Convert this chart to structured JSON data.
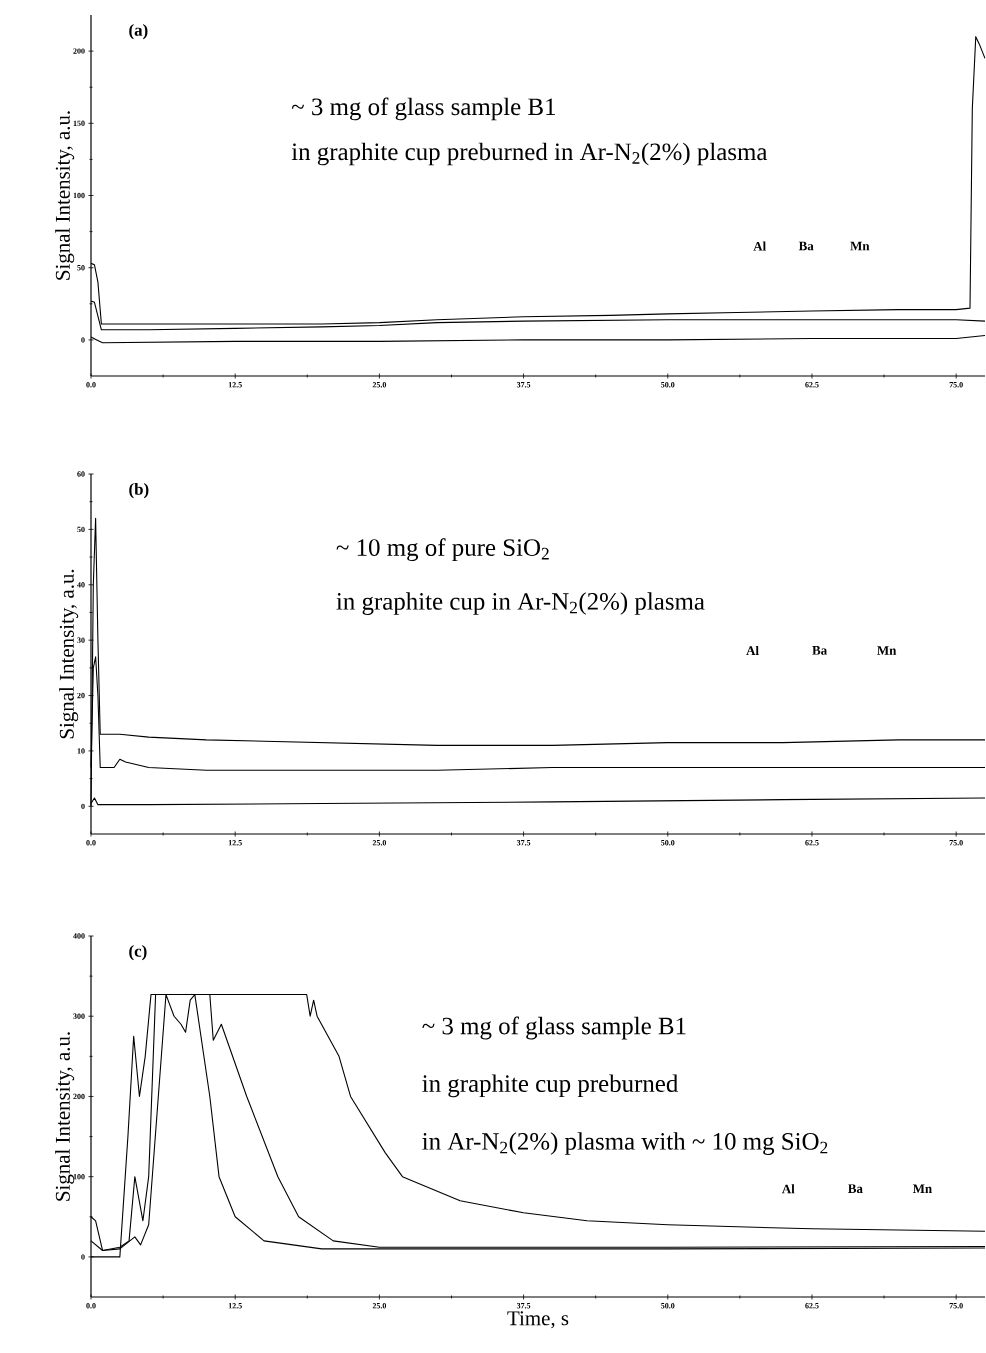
{
  "chart_data": [
    {
      "type": "line",
      "title": "(a)",
      "ylabel": "Signal Intensity, a.u.",
      "annotations": [
        "~ 3 mg of glass sample B1",
        "in graphite cup preburned in Ar-N$_{2}$(2%) plasma",
        "Al",
        "Ba",
        "Mn"
      ],
      "xlim": [
        0,
        77.5
      ],
      "ylim": [
        -25,
        225
      ],
      "xticks": [
        {
          "value": 0,
          "label": "0.0"
        },
        {
          "value": 12.5,
          "label": "12.5"
        },
        {
          "value": 25,
          "label": "25.0"
        },
        {
          "value": 37.5,
          "label": "37.5"
        },
        {
          "value": 50,
          "label": "50.0"
        },
        {
          "value": 62.5,
          "label": "62.5"
        },
        {
          "value": 75,
          "label": "75.0"
        }
      ],
      "yticks": [
        0,
        50,
        100,
        150,
        200
      ],
      "series": [
        {
          "color": "#000000",
          "x": [
            0,
            0.3,
            0.6,
            0.9,
            5,
            12.5,
            20,
            25,
            30,
            37.5,
            45,
            50,
            56,
            62.5,
            70,
            75,
            76.2,
            76.4,
            76.7,
            77,
            77.5
          ],
          "values": [
            53,
            52,
            40,
            11,
            11,
            11,
            11,
            12,
            14,
            16,
            17,
            18,
            19,
            20,
            21,
            21,
            22,
            160,
            210,
            205,
            195
          ]
        },
        {
          "color": "#000000",
          "x": [
            0,
            0.3,
            0.9,
            5,
            12.5,
            20,
            25,
            30,
            37.5,
            50,
            62.5,
            75,
            77.5
          ],
          "values": [
            27,
            26,
            7,
            7,
            8,
            9,
            10,
            12,
            13,
            14,
            14,
            14,
            13
          ]
        },
        {
          "color": "#000000",
          "x": [
            0,
            0.5,
            1,
            12.5,
            25,
            37.5,
            50,
            62.5,
            75,
            77.5
          ],
          "values": [
            2,
            0,
            -2,
            -1,
            -1,
            0,
            0,
            1,
            1,
            3
          ]
        }
      ]
    },
    {
      "type": "line",
      "title": "(b)",
      "ylabel": "Signal Intensity, a.u.",
      "annotations": [
        "~ 10 mg of pure SiO$_{2}$",
        "in graphite cup in Ar-N$_{2}$(2%) plasma",
        "Al",
        "Ba",
        "Mn"
      ],
      "xlim": [
        0,
        77.5
      ],
      "ylim": [
        -5,
        60
      ],
      "xticks": [
        {
          "value": 0,
          "label": "0.0"
        },
        {
          "value": 12.5,
          "label": "12.5"
        },
        {
          "value": 25,
          "label": "25.0"
        },
        {
          "value": 37.5,
          "label": "37.5"
        },
        {
          "value": 50,
          "label": "50.0"
        },
        {
          "value": 62.5,
          "label": "62.5"
        },
        {
          "value": 75,
          "label": "75.0"
        }
      ],
      "yticks": [
        0,
        10,
        20,
        30,
        40,
        50,
        60
      ],
      "series": [
        {
          "color": "#000000",
          "x": [
            0,
            0.2,
            0.4,
            0.6,
            0.8,
            2.5,
            5,
            10,
            20,
            30,
            40,
            50,
            60,
            70,
            77.5
          ],
          "values": [
            0,
            40,
            52,
            30,
            13,
            13,
            12.5,
            12,
            11.5,
            11,
            11,
            11.5,
            11.5,
            12,
            12
          ]
        },
        {
          "color": "#000000",
          "x": [
            0,
            0.2,
            0.4,
            0.6,
            0.8,
            2,
            2.5,
            3,
            5,
            10,
            20,
            30,
            40,
            50,
            60,
            70,
            77.5
          ],
          "values": [
            7,
            25,
            27,
            20,
            7,
            7,
            8.5,
            8,
            7,
            6.5,
            6.5,
            6.5,
            7,
            7,
            7,
            7,
            7
          ]
        },
        {
          "color": "#000000",
          "x": [
            0,
            0.3,
            0.6,
            5,
            20,
            40,
            60,
            77.5
          ],
          "values": [
            0.5,
            1.5,
            0.3,
            0.3,
            0.5,
            0.8,
            1.2,
            1.5
          ]
        }
      ]
    },
    {
      "type": "line",
      "title": "(c)",
      "xlabel": "Time, s",
      "ylabel": "Signal Intensity, a.u.",
      "annotations": [
        "~ 3 mg of glass sample B1",
        "in graphite cup preburned",
        "in Ar-N$_{2}$(2%) plasma with ~ 10 mg SiO$_{2}$",
        "Al",
        "Ba",
        "Mn"
      ],
      "xlim": [
        0,
        77.5
      ],
      "ylim": [
        -50,
        400
      ],
      "xticks": [
        {
          "value": 0,
          "label": "0.0"
        },
        {
          "value": 12.5,
          "label": "12.5"
        },
        {
          "value": 25,
          "label": "25.0"
        },
        {
          "value": 37.5,
          "label": "37.5"
        },
        {
          "value": 50,
          "label": "50.0"
        },
        {
          "value": 62.5,
          "label": "62.5"
        },
        {
          "value": 75,
          "label": "75.0"
        }
      ],
      "yticks": [
        0,
        100,
        200,
        300,
        400
      ],
      "series": [
        {
          "color": "#000000",
          "x": [
            0,
            1,
            2.5,
            3.8,
            4.3,
            5,
            6.5,
            7.2,
            7.8,
            8.2,
            8.6,
            9,
            10.3,
            11.1,
            12.5,
            15,
            20,
            30,
            50,
            77.5
          ],
          "values": [
            20,
            8,
            10,
            25,
            15,
            40,
            327,
            300,
            290,
            280,
            320,
            327,
            200,
            100,
            50,
            20,
            10,
            10,
            10,
            11
          ]
        },
        {
          "color": "#000000",
          "x": [
            0,
            2.5,
            3.2,
            3.7,
            4.2,
            4.7,
            5.2,
            10.3,
            10.6,
            11.3,
            13.5,
            16.2,
            18,
            21,
            25,
            50,
            77.5
          ],
          "values": [
            0,
            0,
            150,
            275,
            200,
            250,
            327,
            327,
            270,
            290,
            200,
            100,
            50,
            20,
            12,
            12,
            13
          ]
        },
        {
          "color": "#000000",
          "x": [
            0,
            0.4,
            1,
            2.5,
            3.3,
            3.8,
            4.5,
            5,
            5.6,
            18.7,
            19,
            19.3,
            19.6,
            21.5,
            22.5,
            25.5,
            27,
            32,
            37.5,
            43,
            50,
            62.5,
            77.5
          ],
          "values": [
            50,
            45,
            8,
            12,
            20,
            100,
            45,
            100,
            327,
            327,
            300,
            320,
            300,
            250,
            200,
            130,
            100,
            70,
            55,
            45,
            40,
            35,
            32
          ]
        }
      ]
    }
  ]
}
